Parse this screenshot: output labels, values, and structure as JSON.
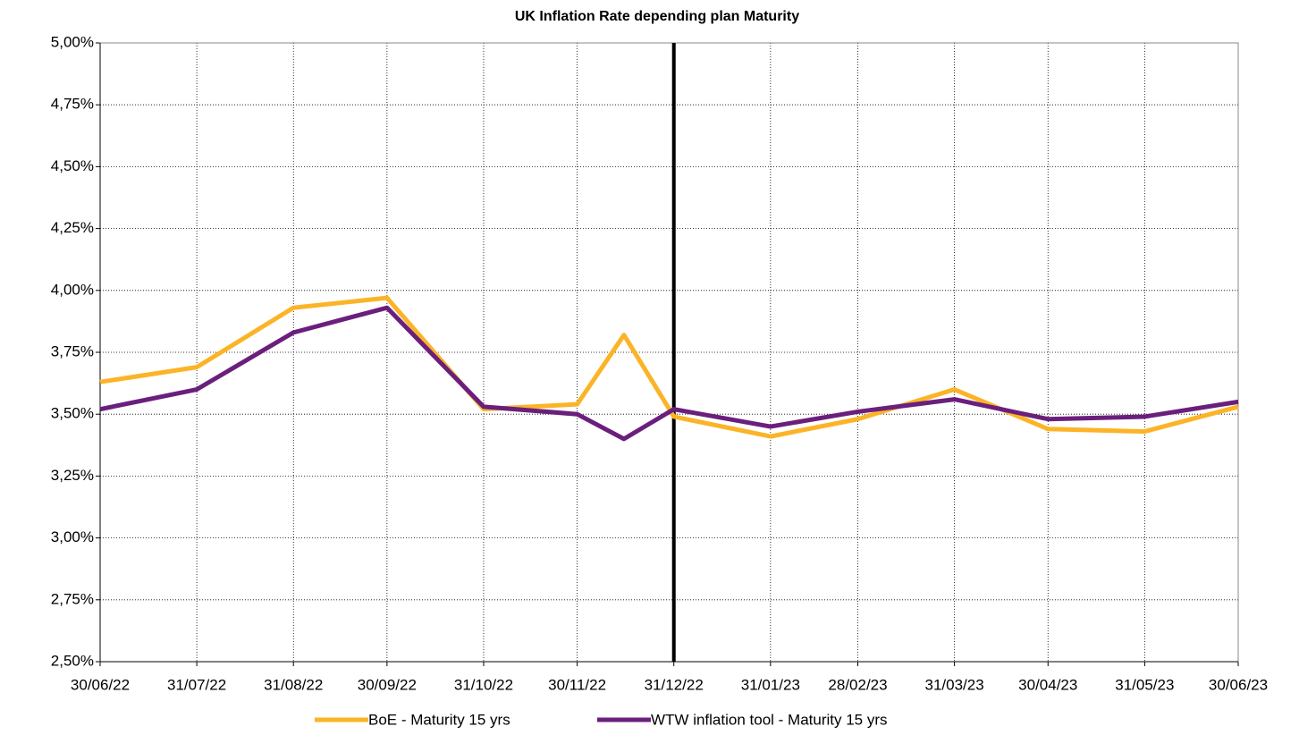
{
  "chart_data": {
    "type": "line",
    "title": "UK Inflation Rate depending plan Maturity",
    "x": [
      "2022-06-30",
      "2022-07-31",
      "2022-08-31",
      "2022-09-30",
      "2022-10-31",
      "2022-11-30",
      "2022-12-15",
      "2022-12-31",
      "2023-01-31",
      "2023-02-28",
      "2023-03-31",
      "2023-04-30",
      "2023-05-31",
      "2023-06-30"
    ],
    "series": [
      {
        "name": "BoE - Maturity 15 yrs",
        "color": "#fbb427",
        "values": [
          3.63,
          3.69,
          3.93,
          3.97,
          3.52,
          3.54,
          3.82,
          3.49,
          3.41,
          3.48,
          3.6,
          3.44,
          3.43,
          3.53
        ]
      },
      {
        "name": "WTW inflation tool - Maturity 15 yrs",
        "color": "#6b1f7d",
        "values": [
          3.52,
          3.6,
          3.83,
          3.93,
          3.53,
          3.5,
          3.4,
          3.52,
          3.45,
          3.51,
          3.56,
          3.48,
          3.49,
          3.55
        ]
      }
    ],
    "xlim": [
      "2022-06-30",
      "2023-06-30"
    ],
    "xticks": [
      {
        "value": "2022-06-30",
        "label": "30/06/22"
      },
      {
        "value": "2022-07-31",
        "label": "31/07/22"
      },
      {
        "value": "2022-08-31",
        "label": "31/08/22"
      },
      {
        "value": "2022-09-30",
        "label": "30/09/22"
      },
      {
        "value": "2022-10-31",
        "label": "31/10/22"
      },
      {
        "value": "2022-11-30",
        "label": "30/11/22"
      },
      {
        "value": "2022-12-31",
        "label": "31/12/22"
      },
      {
        "value": "2023-01-31",
        "label": "31/01/23"
      },
      {
        "value": "2023-02-28",
        "label": "28/02/23"
      },
      {
        "value": "2023-03-31",
        "label": "31/03/23"
      },
      {
        "value": "2023-04-30",
        "label": "30/04/23"
      },
      {
        "value": "2023-05-31",
        "label": "31/05/23"
      },
      {
        "value": "2023-06-30",
        "label": "30/06/23"
      }
    ],
    "ylim": [
      2.5,
      5.0
    ],
    "yticks": [
      {
        "value": 2.5,
        "label": "2,50%"
      },
      {
        "value": 2.75,
        "label": "2,75%"
      },
      {
        "value": 3.0,
        "label": "3,00%"
      },
      {
        "value": 3.25,
        "label": "3,25%"
      },
      {
        "value": 3.5,
        "label": "3,50%"
      },
      {
        "value": 3.75,
        "label": "3,75%"
      },
      {
        "value": 4.0,
        "label": "4,00%"
      },
      {
        "value": 4.25,
        "label": "4,25%"
      },
      {
        "value": 4.5,
        "label": "4,50%"
      },
      {
        "value": 4.75,
        "label": "4,75%"
      },
      {
        "value": 5.0,
        "label": "5,00%"
      }
    ],
    "vline": "2022-12-31",
    "grid": true
  }
}
